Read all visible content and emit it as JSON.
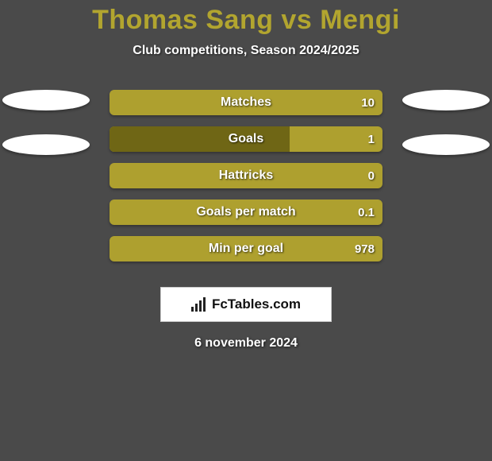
{
  "background_color": "#4a4a4a",
  "header": {
    "title": "Thomas Sang vs Mengi",
    "title_color": "#b2a52f",
    "subtitle": "Club competitions, Season 2024/2025"
  },
  "ovals": {
    "left_count": 2,
    "right_count": 2,
    "fill": "#ffffff"
  },
  "chart": {
    "type": "bar",
    "bar_track_color": "#aea02f",
    "bar_fill_color": "#6f6615",
    "bar_width_limit": 1,
    "bars": [
      {
        "label": "Matches",
        "value": "10",
        "fill_ratio": 0.0
      },
      {
        "label": "Goals",
        "value": "1",
        "fill_ratio": 0.66
      },
      {
        "label": "Hattricks",
        "value": "0",
        "fill_ratio": 0.0
      },
      {
        "label": "Goals per match",
        "value": "0.1",
        "fill_ratio": 0.0
      },
      {
        "label": "Min per goal",
        "value": "978",
        "fill_ratio": 0.0
      }
    ]
  },
  "brand": {
    "text": "FcTables.com",
    "bar_color": "#222222",
    "bg": "#ffffff"
  },
  "date": "6 november 2024"
}
